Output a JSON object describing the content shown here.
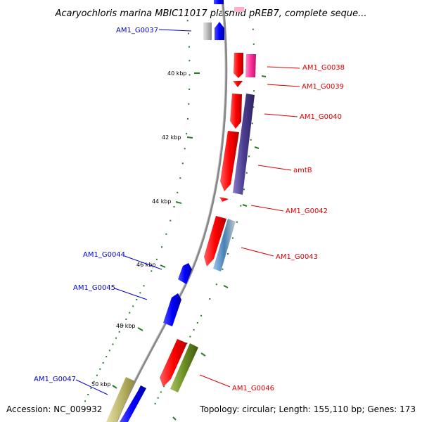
{
  "header": {
    "title": "Acaryochloris marina MBIC11017 plasmid pREB7, complete seque..."
  },
  "footer": {
    "accession": "Accession: NC_009932",
    "summary": "Topology: circular; Length: 155,110 bp; Genes: 173"
  },
  "ticks": [
    {
      "label": "40 kbp"
    },
    {
      "label": "42 kbp"
    },
    {
      "label": "44 kbp"
    },
    {
      "label": "46 kbp"
    },
    {
      "label": "48 kbp"
    },
    {
      "label": "50 kbp"
    }
  ],
  "genes": [
    {
      "name": "AM1_G0037",
      "strand": "reverse",
      "color": "#0000cc"
    },
    {
      "name": "AM1_G0038",
      "strand": "forward",
      "color": "#dd0000"
    },
    {
      "name": "AM1_G0039",
      "strand": "forward",
      "color": "#dd0000"
    },
    {
      "name": "AM1_G0040",
      "strand": "forward",
      "color": "#dd0000"
    },
    {
      "name": "amtB",
      "strand": "forward",
      "color": "#dd0000"
    },
    {
      "name": "AM1_G0042",
      "strand": "forward",
      "color": "#dd0000"
    },
    {
      "name": "AM1_G0043",
      "strand": "forward",
      "color": "#dd0000"
    },
    {
      "name": "AM1_G0044",
      "strand": "reverse",
      "color": "#0000cc"
    },
    {
      "name": "AM1_G0045",
      "strand": "reverse",
      "color": "#0000cc"
    },
    {
      "name": "AM1_G0046",
      "strand": "forward",
      "color": "#dd0000"
    },
    {
      "name": "AM1_G0047",
      "strand": "reverse",
      "color": "#0000cc"
    }
  ],
  "colors": {
    "forward_cds": "#ff0000",
    "reverse_cds": "#0000ff",
    "backbone": "#888888",
    "tick": "#2a7a2a"
  }
}
